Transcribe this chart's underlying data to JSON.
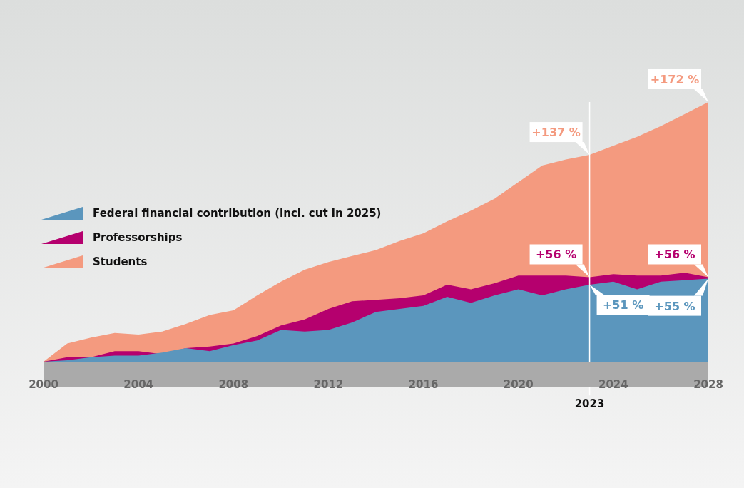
{
  "chart_data": {
    "type": "area",
    "x": [
      2000,
      2001,
      2002,
      2003,
      2004,
      2005,
      2006,
      2007,
      2008,
      2009,
      2010,
      2011,
      2012,
      2013,
      2014,
      2015,
      2016,
      2017,
      2018,
      2019,
      2020,
      2021,
      2022,
      2023,
      2024,
      2025,
      2026,
      2027,
      2028
    ],
    "series": [
      {
        "name": "Federal financial contribution (incl. cut in 2025)",
        "color": "#5b96bd",
        "values": [
          0,
          1,
          3,
          4,
          4,
          6,
          9,
          7,
          11,
          14,
          21,
          20,
          21,
          26,
          33,
          35,
          37,
          43,
          39,
          44,
          48,
          44,
          48,
          51,
          53,
          48,
          53,
          54,
          55
        ],
        "value_labels": [
          null,
          null,
          null,
          null,
          null,
          null,
          null,
          null,
          null,
          null,
          null,
          null,
          null,
          null,
          null,
          null,
          null,
          null,
          null,
          null,
          null,
          null,
          null,
          "+51 %",
          null,
          null,
          null,
          null,
          "+55 %"
        ]
      },
      {
        "name": "Professorships",
        "color": "#b5006e",
        "values": [
          0,
          3,
          3,
          7,
          7,
          5,
          9,
          10,
          12,
          17,
          24,
          28,
          35,
          40,
          41,
          42,
          44,
          51,
          48,
          52,
          57,
          57,
          57,
          56,
          58,
          57,
          57,
          59,
          56
        ],
        "value_labels": [
          null,
          null,
          null,
          null,
          null,
          null,
          null,
          null,
          null,
          null,
          null,
          null,
          null,
          null,
          null,
          null,
          null,
          null,
          null,
          null,
          null,
          null,
          null,
          "+56 %",
          null,
          null,
          null,
          null,
          "+56 %"
        ]
      },
      {
        "name": "Students",
        "color": "#f49a7f",
        "values": [
          0,
          12,
          16,
          19,
          18,
          20,
          25,
          31,
          34,
          44,
          53,
          61,
          66,
          70,
          74,
          80,
          85,
          93,
          100,
          108,
          119,
          130,
          134,
          137,
          143,
          149,
          156,
          164,
          172
        ],
        "value_labels": [
          null,
          null,
          null,
          null,
          null,
          null,
          null,
          null,
          null,
          null,
          null,
          null,
          null,
          null,
          null,
          null,
          null,
          null,
          null,
          null,
          null,
          null,
          null,
          "+137 %",
          null,
          null,
          null,
          null,
          "+172 %"
        ]
      }
    ],
    "xlim": [
      2000,
      2028
    ],
    "xticks": [
      2000,
      2004,
      2008,
      2012,
      2016,
      2020,
      2024,
      2028
    ],
    "tick_labels": "x",
    "grid": false,
    "legend": "left",
    "ref_lines": [
      {
        "axis": "x",
        "value": 2023,
        "label": "2023",
        "color": "#ffffff"
      }
    ]
  }
}
